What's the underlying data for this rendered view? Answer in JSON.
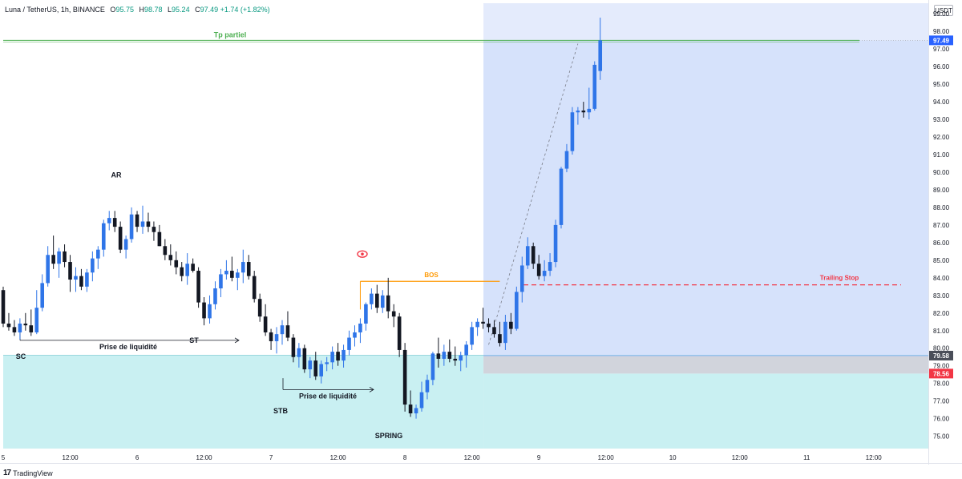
{
  "header": {
    "symbol": "Luna / TetherUS, 1h, BINANCE",
    "open_label": "O",
    "open": "95.75",
    "high_label": "H",
    "high": "98.78",
    "low_label": "L",
    "low": "95.24",
    "close_label": "C",
    "close": "97.49",
    "change": "+1.74 (+1.82%)"
  },
  "currency": "USDT",
  "brand": "TradingView",
  "colors": {
    "up": "#2962ff",
    "up_body": "#2f75e8",
    "down": "#131722",
    "accum_zone": "#c9f0f2",
    "target_zone": "#d6e2fb",
    "target_top": "#e4ebfc",
    "stop_zone": "#d1d4dc",
    "tp_line": "#4caf50",
    "bos_line": "#ff9800",
    "trailing": "#f23645",
    "price_tag": "#2962ff",
    "stop_tag": "#f23645"
  },
  "chart_data": {
    "type": "candlestick",
    "title": "Luna / TetherUS, 1h, BINANCE",
    "ylim": [
      74.3,
      99.6
    ],
    "y_ticks": [
      "99.00",
      "98.00",
      "97.00",
      "96.00",
      "95.00",
      "94.00",
      "93.00",
      "92.00",
      "91.00",
      "90.00",
      "89.00",
      "88.00",
      "87.00",
      "86.00",
      "85.00",
      "84.00",
      "83.00",
      "82.00",
      "81.00",
      "80.00",
      "79.00",
      "78.00",
      "77.00",
      "76.00",
      "75.00"
    ],
    "x_ticks": [
      {
        "label": "5",
        "slot": 0
      },
      {
        "label": "12:00",
        "slot": 12
      },
      {
        "label": "6",
        "slot": 24
      },
      {
        "label": "12:00",
        "slot": 36
      },
      {
        "label": "7",
        "slot": 48
      },
      {
        "label": "12:00",
        "slot": 60
      },
      {
        "label": "8",
        "slot": 72
      },
      {
        "label": "12:00",
        "slot": 84
      },
      {
        "label": "9",
        "slot": 96
      },
      {
        "label": "12:00",
        "slot": 108
      },
      {
        "label": "10",
        "slot": 120
      },
      {
        "label": "12:00",
        "slot": 132
      },
      {
        "label": "11",
        "slot": 144
      },
      {
        "label": "12:00",
        "slot": 156
      }
    ],
    "candles": [
      [
        83.3,
        83.5,
        81.2,
        81.4
      ],
      [
        81.4,
        82.0,
        81.0,
        81.2
      ],
      [
        81.2,
        81.6,
        80.7,
        80.9
      ],
      [
        80.9,
        81.7,
        80.5,
        81.4
      ],
      [
        81.4,
        82.0,
        81.0,
        81.3
      ],
      [
        81.3,
        82.2,
        80.7,
        80.9
      ],
      [
        80.9,
        83.3,
        80.8,
        82.3
      ],
      [
        82.3,
        84.2,
        82.1,
        83.7
      ],
      [
        83.7,
        85.8,
        83.5,
        85.3
      ],
      [
        85.3,
        86.4,
        84.5,
        84.8
      ],
      [
        84.8,
        85.7,
        84.0,
        85.5
      ],
      [
        85.5,
        85.9,
        84.6,
        84.9
      ],
      [
        84.9,
        85.3,
        83.2,
        83.9
      ],
      [
        83.9,
        84.6,
        83.2,
        84.1
      ],
      [
        84.1,
        84.5,
        83.3,
        83.5
      ],
      [
        83.5,
        84.5,
        83.2,
        84.3
      ],
      [
        84.3,
        85.5,
        83.8,
        85.1
      ],
      [
        85.1,
        85.8,
        84.5,
        85.6
      ],
      [
        85.6,
        87.3,
        85.2,
        87.1
      ],
      [
        87.1,
        87.8,
        86.7,
        87.4
      ],
      [
        87.4,
        87.8,
        86.6,
        86.9
      ],
      [
        86.9,
        87.2,
        85.4,
        85.6
      ],
      [
        85.6,
        86.4,
        85.1,
        86.2
      ],
      [
        86.2,
        88.0,
        86.0,
        87.6
      ],
      [
        87.6,
        87.8,
        86.6,
        86.9
      ],
      [
        86.9,
        88.1,
        86.5,
        87.2
      ],
      [
        87.2,
        87.7,
        86.6,
        86.9
      ],
      [
        86.9,
        87.2,
        86.1,
        86.6
      ],
      [
        86.6,
        87.0,
        85.8,
        85.8
      ],
      [
        85.8,
        86.2,
        85.0,
        85.3
      ],
      [
        85.3,
        85.9,
        84.7,
        85.0
      ],
      [
        85.0,
        85.5,
        84.2,
        84.6
      ],
      [
        84.6,
        84.9,
        83.8,
        84.1
      ],
      [
        84.1,
        85.4,
        83.6,
        84.8
      ],
      [
        84.8,
        85.1,
        84.3,
        84.4
      ],
      [
        84.4,
        84.6,
        82.3,
        82.6
      ],
      [
        82.6,
        82.9,
        81.3,
        81.7
      ],
      [
        81.7,
        83.0,
        81.4,
        82.5
      ],
      [
        82.5,
        83.8,
        82.2,
        83.4
      ],
      [
        83.4,
        84.5,
        82.9,
        84.2
      ],
      [
        84.2,
        85.0,
        83.9,
        84.4
      ],
      [
        84.4,
        85.2,
        83.8,
        84.0
      ],
      [
        84.0,
        84.5,
        83.3,
        84.3
      ],
      [
        84.3,
        85.6,
        83.7,
        84.9
      ],
      [
        84.9,
        85.3,
        83.9,
        84.1
      ],
      [
        84.1,
        84.4,
        82.6,
        82.8
      ],
      [
        82.8,
        83.1,
        81.5,
        81.8
      ],
      [
        81.8,
        82.5,
        80.7,
        80.9
      ],
      [
        80.9,
        81.1,
        79.9,
        80.4
      ],
      [
        80.4,
        81.2,
        79.7,
        80.8
      ],
      [
        80.8,
        81.6,
        80.2,
        81.3
      ],
      [
        81.3,
        82.1,
        80.4,
        80.6
      ],
      [
        80.6,
        80.8,
        79.2,
        79.5
      ],
      [
        79.5,
        80.3,
        78.9,
        80.0
      ],
      [
        80.0,
        80.2,
        78.6,
        78.8
      ],
      [
        78.8,
        79.5,
        78.3,
        79.3
      ],
      [
        79.3,
        79.8,
        78.2,
        78.4
      ],
      [
        78.4,
        79.3,
        78.0,
        79.1
      ],
      [
        79.1,
        79.5,
        78.7,
        79.2
      ],
      [
        79.2,
        80.1,
        78.8,
        79.8
      ],
      [
        79.8,
        80.3,
        79.0,
        79.3
      ],
      [
        79.3,
        80.2,
        78.9,
        79.9
      ],
      [
        79.9,
        81.0,
        79.6,
        80.6
      ],
      [
        80.6,
        81.3,
        80.1,
        80.9
      ],
      [
        80.9,
        81.7,
        80.3,
        81.4
      ],
      [
        81.4,
        82.6,
        81.0,
        82.5
      ],
      [
        82.5,
        83.4,
        82.2,
        83.1
      ],
      [
        83.1,
        83.6,
        82.0,
        82.3
      ],
      [
        82.3,
        83.3,
        82.0,
        83.0
      ],
      [
        83.0,
        84.0,
        81.7,
        82.1
      ],
      [
        82.1,
        82.5,
        81.2,
        81.8
      ],
      [
        81.8,
        82.0,
        79.5,
        79.9
      ],
      [
        79.9,
        80.3,
        76.4,
        76.8
      ],
      [
        76.8,
        77.6,
        76.1,
        76.3
      ],
      [
        76.3,
        76.8,
        76.0,
        76.6
      ],
      [
        76.6,
        78.1,
        76.4,
        77.5
      ],
      [
        77.5,
        78.5,
        77.1,
        78.2
      ],
      [
        78.2,
        79.8,
        77.9,
        79.7
      ],
      [
        79.7,
        80.6,
        78.9,
        79.4
      ],
      [
        79.4,
        80.2,
        79.0,
        79.8
      ],
      [
        79.8,
        80.5,
        79.2,
        79.4
      ],
      [
        79.4,
        80.1,
        79.0,
        79.3
      ],
      [
        79.3,
        79.8,
        78.7,
        79.6
      ],
      [
        79.6,
        80.4,
        78.9,
        80.2
      ],
      [
        80.2,
        81.5,
        79.9,
        81.2
      ],
      [
        81.2,
        81.7,
        80.7,
        81.5
      ],
      [
        81.5,
        82.3,
        81.1,
        81.4
      ],
      [
        81.4,
        81.7,
        80.9,
        81.2
      ],
      [
        81.2,
        81.6,
        80.6,
        80.8
      ],
      [
        80.8,
        81.5,
        80.1,
        80.3
      ],
      [
        80.3,
        81.9,
        79.9,
        81.5
      ],
      [
        81.5,
        82.0,
        80.8,
        81.1
      ],
      [
        81.1,
        83.5,
        81.0,
        83.2
      ],
      [
        83.2,
        85.2,
        82.6,
        84.7
      ],
      [
        84.7,
        86.3,
        84.5,
        85.8
      ],
      [
        85.8,
        86.0,
        84.5,
        84.8
      ],
      [
        84.8,
        85.3,
        83.9,
        84.1
      ],
      [
        84.1,
        85.0,
        83.8,
        84.4
      ],
      [
        84.4,
        85.4,
        84.1,
        84.9
      ],
      [
        84.9,
        87.3,
        84.6,
        87.0
      ],
      [
        87.0,
        90.3,
        86.8,
        90.2
      ],
      [
        90.2,
        91.6,
        90.0,
        91.2
      ],
      [
        91.2,
        93.7,
        91.0,
        93.4
      ],
      [
        93.4,
        93.7,
        92.7,
        93.5
      ],
      [
        93.5,
        94.0,
        93.1,
        93.4
      ],
      [
        93.4,
        94.8,
        93.0,
        93.6
      ],
      [
        93.6,
        96.3,
        93.5,
        96.1
      ],
      [
        95.75,
        98.78,
        95.24,
        97.49
      ]
    ],
    "annotations": {
      "tp_label": "Tp partiel",
      "tp_level": 97.49,
      "bos_label": "BOS",
      "bos_level": 83.8,
      "trailing_label": "Trailing Stop",
      "trailing_level": 83.6,
      "liq1_label": "Prise de liquidité",
      "liq2_label": "Prise de liquidité",
      "sc_label": "SC",
      "ar_label": "AR",
      "st_label": "ST",
      "stb_label": "STB",
      "spring_label": "SPRING",
      "accum_top": 79.6,
      "entry_level": 79.58,
      "stop_level": 78.56
    },
    "price_tags": [
      "97.49",
      "79.58",
      "78.56"
    ]
  }
}
